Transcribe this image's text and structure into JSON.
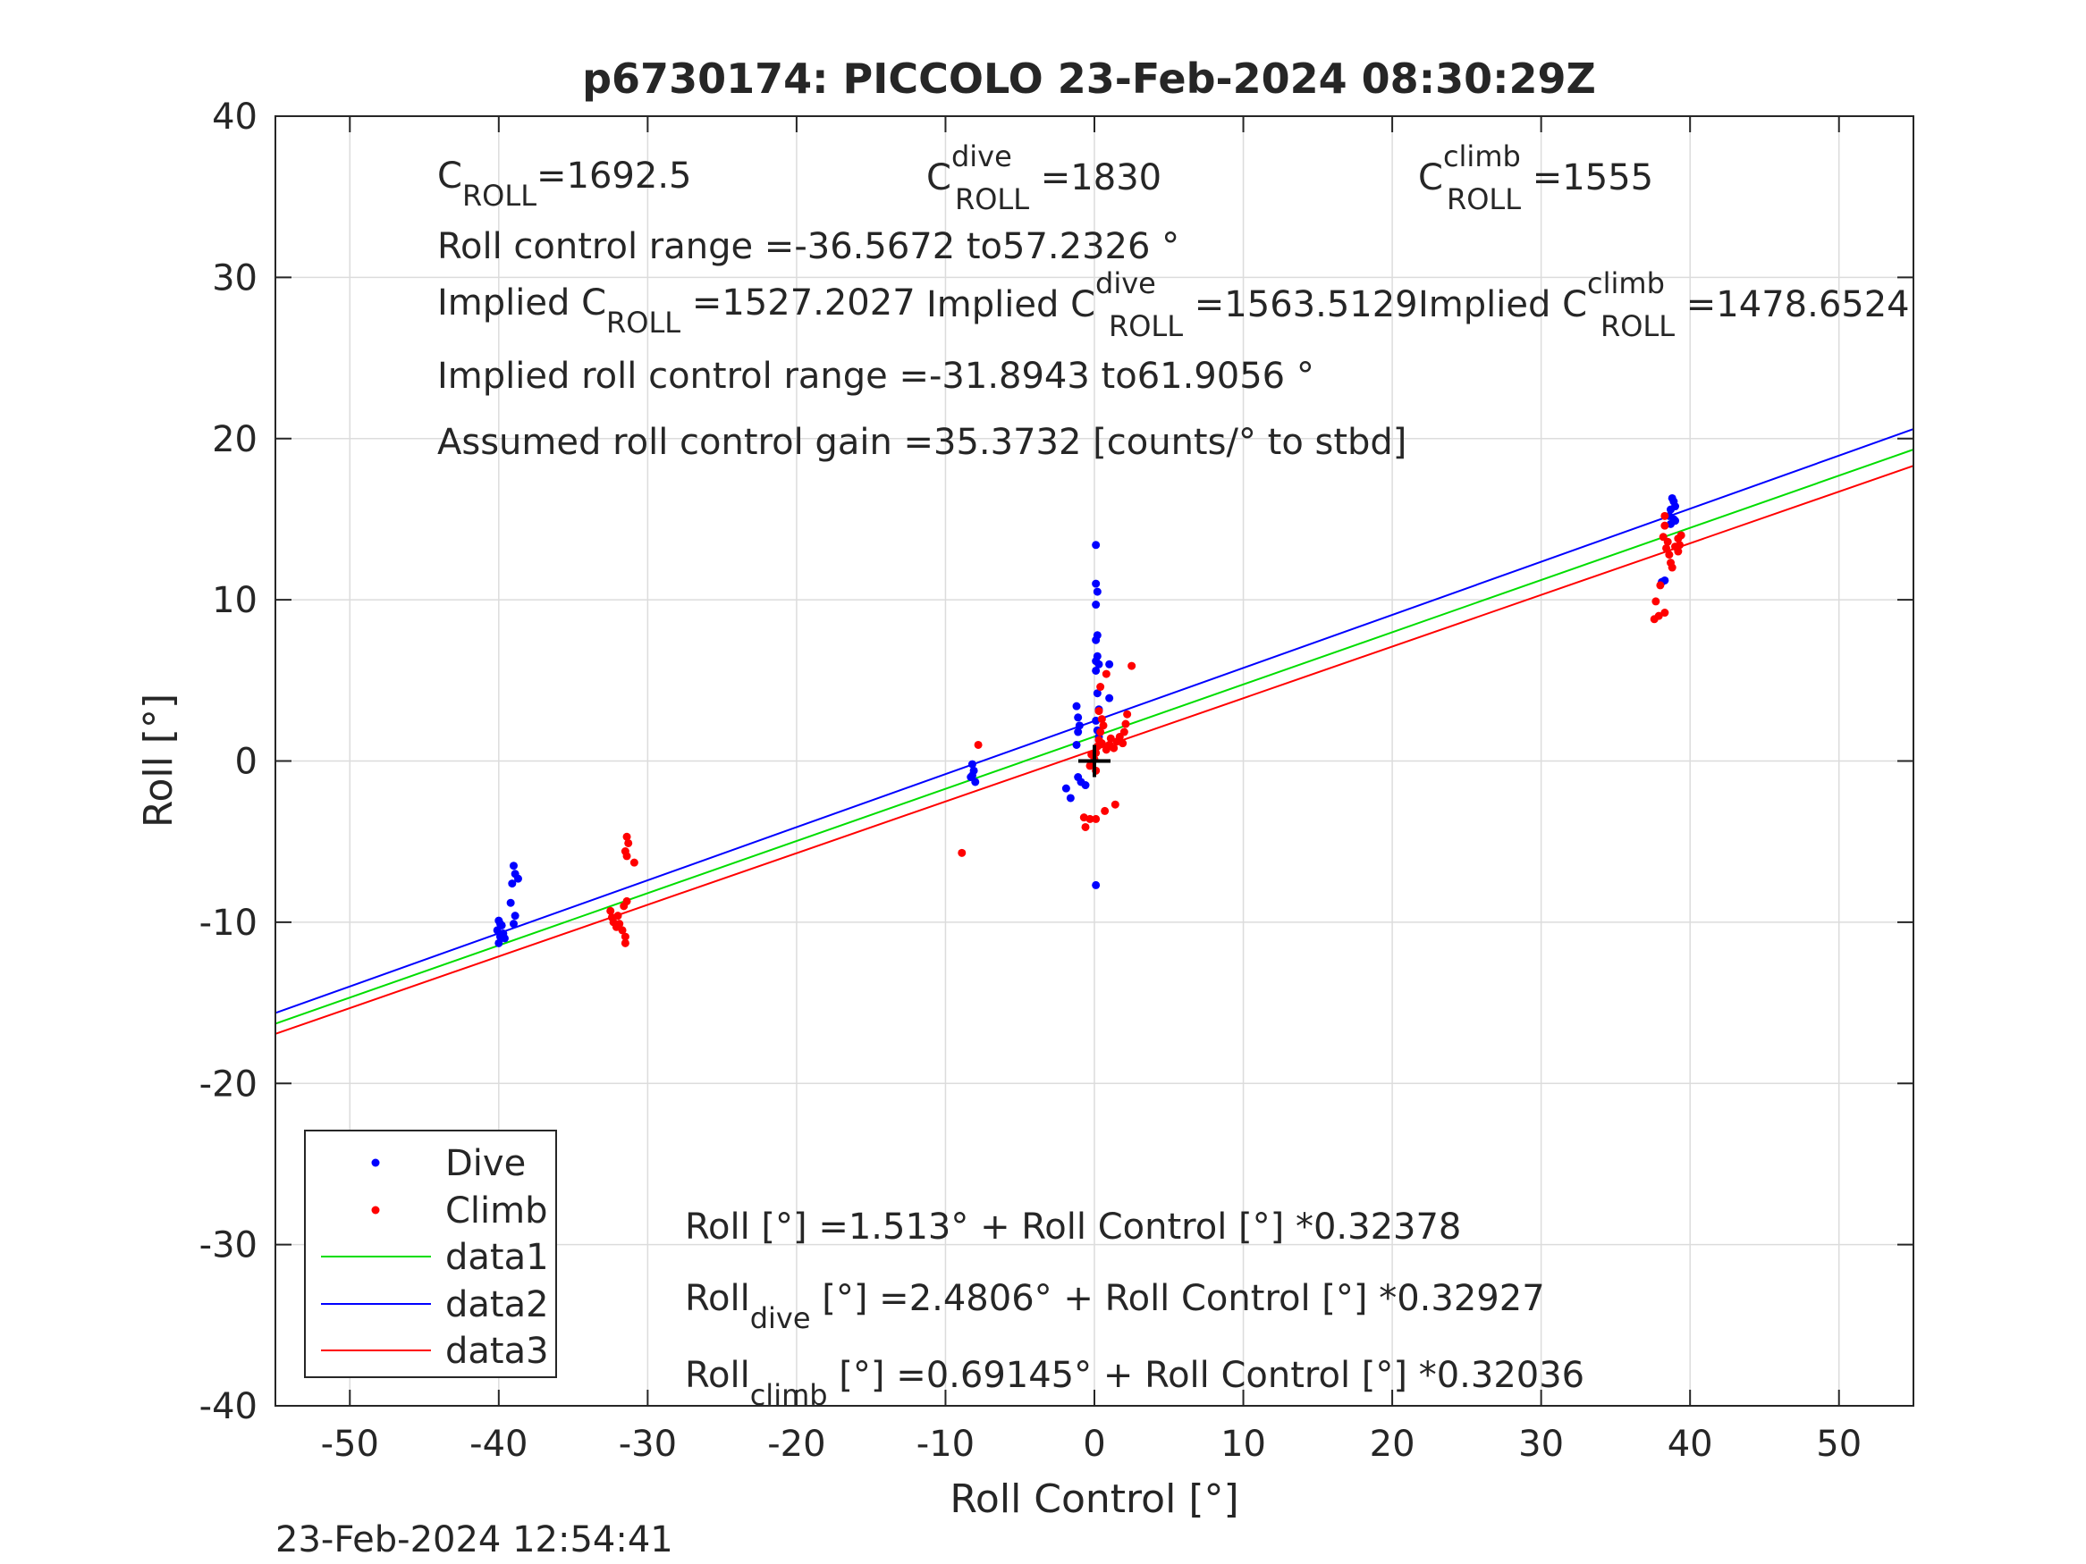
{
  "chart_data": {
    "type": "scatter",
    "title": "p6730174: PICCOLO 23-Feb-2024 08:30:29Z",
    "xlabel": "Roll Control [°]",
    "ylabel": "Roll [°]",
    "xlim": [
      -55,
      55
    ],
    "ylim": [
      -40,
      40
    ],
    "xticks": [
      -50,
      -40,
      -30,
      -20,
      -10,
      0,
      10,
      20,
      30,
      40,
      50
    ],
    "yticks": [
      -40,
      -30,
      -20,
      -10,
      0,
      10,
      20,
      30,
      40
    ],
    "grid": true,
    "legend_position": "bottom-left",
    "timestamp": "23-Feb-2024 12:54:41",
    "colors": {
      "dive": "#0000ff",
      "climb": "#ff0000",
      "data1": "#00dd00",
      "data2": "#0000ff",
      "data3": "#ff0000",
      "grid": "#dcdcdc",
      "axis": "#262626"
    },
    "legend": [
      {
        "label": "Dive",
        "kind": "marker",
        "color": "#0000ff"
      },
      {
        "label": "Climb",
        "kind": "marker",
        "color": "#ff0000"
      },
      {
        "label": "data1",
        "kind": "line",
        "color": "#00dd00"
      },
      {
        "label": "data2",
        "kind": "line",
        "color": "#0000ff"
      },
      {
        "label": "data3",
        "kind": "line",
        "color": "#ff0000"
      }
    ],
    "fit_lines": [
      {
        "name": "data1",
        "color": "#00dd00",
        "intercept": 1.513,
        "slope": 0.32378
      },
      {
        "name": "data2",
        "color": "#0000ff",
        "intercept": 2.4806,
        "slope": 0.32927
      },
      {
        "name": "data3",
        "color": "#ff0000",
        "intercept": 0.69145,
        "slope": 0.32036
      }
    ],
    "marker_center": {
      "x": 0,
      "y": 0
    },
    "series": [
      {
        "name": "Dive",
        "color": "#0000ff",
        "points": [
          [
            -40,
            -11.3
          ],
          [
            -39.9,
            -10.9
          ],
          [
            -40.1,
            -10.5
          ],
          [
            -39.8,
            -10.2
          ],
          [
            -40,
            -9.9
          ],
          [
            -39.7,
            -10.7
          ],
          [
            -39.6,
            -11.0
          ],
          [
            -39.9,
            -10.1
          ],
          [
            -39.0,
            -6.5
          ],
          [
            -38.9,
            -7.0
          ],
          [
            -38.7,
            -7.3
          ],
          [
            -39.1,
            -7.6
          ],
          [
            -39.2,
            -8.8
          ],
          [
            -38.9,
            -9.6
          ],
          [
            -39.0,
            -10.1
          ],
          [
            -8.2,
            -0.2
          ],
          [
            -8.1,
            -0.6
          ],
          [
            -8.3,
            -1.0
          ],
          [
            -8.0,
            -1.3
          ],
          [
            -8.2,
            -0.9
          ],
          [
            -1.9,
            -1.7
          ],
          [
            -1.6,
            -2.3
          ],
          [
            -1.1,
            -1.0
          ],
          [
            -0.9,
            -1.3
          ],
          [
            -0.6,
            -1.5
          ],
          [
            -1.2,
            1.0
          ],
          [
            -1.1,
            1.8
          ],
          [
            -1.0,
            2.2
          ],
          [
            -1.1,
            2.7
          ],
          [
            -1.2,
            3.4
          ],
          [
            0.1,
            13.4
          ],
          [
            0.1,
            11.0
          ],
          [
            0.2,
            10.5
          ],
          [
            0.1,
            9.7
          ],
          [
            0.2,
            7.8
          ],
          [
            0.1,
            7.5
          ],
          [
            0.2,
            6.5
          ],
          [
            0.1,
            6.2
          ],
          [
            0.3,
            6.0
          ],
          [
            0.1,
            5.6
          ],
          [
            0.2,
            4.2
          ],
          [
            1.0,
            6.0
          ],
          [
            1.0,
            3.9
          ],
          [
            0.1,
            -7.7
          ],
          [
            0.3,
            3.2
          ],
          [
            0.1,
            2.5
          ],
          [
            0.2,
            1.9
          ],
          [
            0.3,
            1.5
          ],
          [
            38.1,
            11.1
          ],
          [
            38.3,
            11.2
          ],
          [
            38.6,
            15.2
          ],
          [
            38.7,
            15.6
          ],
          [
            38.9,
            16.1
          ],
          [
            38.8,
            16.3
          ],
          [
            39.0,
            15.8
          ],
          [
            38.9,
            15.0
          ],
          [
            38.7,
            14.7
          ],
          [
            39.0,
            14.9
          ]
        ]
      },
      {
        "name": "Climb",
        "color": "#ff0000",
        "points": [
          [
            -32.5,
            -9.3
          ],
          [
            -32.4,
            -9.7
          ],
          [
            -32.3,
            -10.0
          ],
          [
            -32.1,
            -10.3
          ],
          [
            -32.0,
            -9.6
          ],
          [
            -31.9,
            -10.1
          ],
          [
            -31.7,
            -10.5
          ],
          [
            -31.5,
            -10.9
          ],
          [
            -31.5,
            -11.3
          ],
          [
            -31.6,
            -9.0
          ],
          [
            -31.4,
            -8.7
          ],
          [
            -31.4,
            -4.7
          ],
          [
            -31.3,
            -5.1
          ],
          [
            -31.5,
            -5.6
          ],
          [
            -31.4,
            -5.9
          ],
          [
            -30.9,
            -6.3
          ],
          [
            -8.9,
            -5.7
          ],
          [
            -7.8,
            1.0
          ],
          [
            -0.7,
            -3.5
          ],
          [
            -0.6,
            -4.1
          ],
          [
            -0.3,
            -3.6
          ],
          [
            0.1,
            -3.6
          ],
          [
            0.7,
            -3.1
          ],
          [
            1.4,
            -2.7
          ],
          [
            0.0,
            0.1
          ],
          [
            0.1,
            0.5
          ],
          [
            0.2,
            0.9
          ],
          [
            0.3,
            1.3
          ],
          [
            0.5,
            1.1
          ],
          [
            0.4,
            1.8
          ],
          [
            0.6,
            2.2
          ],
          [
            0.5,
            2.6
          ],
          [
            0.3,
            3.1
          ],
          [
            0.1,
            -0.6
          ],
          [
            -0.2,
            0.4
          ],
          [
            -0.3,
            -0.3
          ],
          [
            0.8,
            0.7
          ],
          [
            1.0,
            1.0
          ],
          [
            1.1,
            1.4
          ],
          [
            1.3,
            0.8
          ],
          [
            1.5,
            1.2
          ],
          [
            1.7,
            1.5
          ],
          [
            1.9,
            1.1
          ],
          [
            2.0,
            1.8
          ],
          [
            2.1,
            2.3
          ],
          [
            2.2,
            2.9
          ],
          [
            2.5,
            5.9
          ],
          [
            0.4,
            4.6
          ],
          [
            0.8,
            5.4
          ],
          [
            37.6,
            8.8
          ],
          [
            37.9,
            9.0
          ],
          [
            38.3,
            9.2
          ],
          [
            37.7,
            9.9
          ],
          [
            38.0,
            10.9
          ],
          [
            38.3,
            15.2
          ],
          [
            38.3,
            14.6
          ],
          [
            38.2,
            13.9
          ],
          [
            38.4,
            13.2
          ],
          [
            38.6,
            12.8
          ],
          [
            38.7,
            12.3
          ],
          [
            38.8,
            12.0
          ],
          [
            38.5,
            13.6
          ],
          [
            39.0,
            13.3
          ],
          [
            39.2,
            13.0
          ],
          [
            39.3,
            13.4
          ],
          [
            39.2,
            13.8
          ],
          [
            39.4,
            14.0
          ]
        ]
      }
    ]
  },
  "annotations": {
    "c_roll_base": "C",
    "c_roll_sub": "ROLL",
    "c_roll_value": "=1692.5",
    "c_dive_base": "C",
    "c_dive_sup": "dive",
    "c_dive_sub": "ROLL",
    "c_dive_value": " =1830",
    "c_climb_base": "C",
    "c_climb_sup": "climb",
    "c_climb_sub": "ROLL",
    "c_climb_value": " =1555",
    "roll_range": "Roll control range =-36.5672 to57.2326 °",
    "implied_prefix": "Implied C",
    "implied_sub": "ROLL",
    "implied_value": " =1527.2027",
    "implied_dive_prefix": "Implied C",
    "implied_dive_sup": "dive",
    "implied_dive_sub": "ROLL",
    "implied_dive_value": " =1563.5129",
    "implied_climb_prefix": "Implied C",
    "implied_climb_sup": "climb",
    "implied_climb_sub": "ROLL",
    "implied_climb_value": " =1478.6524",
    "implied_range": "Implied roll control range =-31.8943 to61.9056 °",
    "assumed_gain": "Assumed roll control gain =35.3732 [counts/° to stbd]",
    "eq_all": "Roll [°] =1.513° + Roll Control [°] *0.32378",
    "eq_dive_base": "Roll",
    "eq_dive_sub": "dive",
    "eq_dive_rest": " [°] =2.4806° + Roll Control [°] *0.32927",
    "eq_climb_base": "Roll",
    "eq_climb_sub": "climb",
    "eq_climb_rest": " [°] =0.69145° + Roll Control [°] *0.32036"
  }
}
